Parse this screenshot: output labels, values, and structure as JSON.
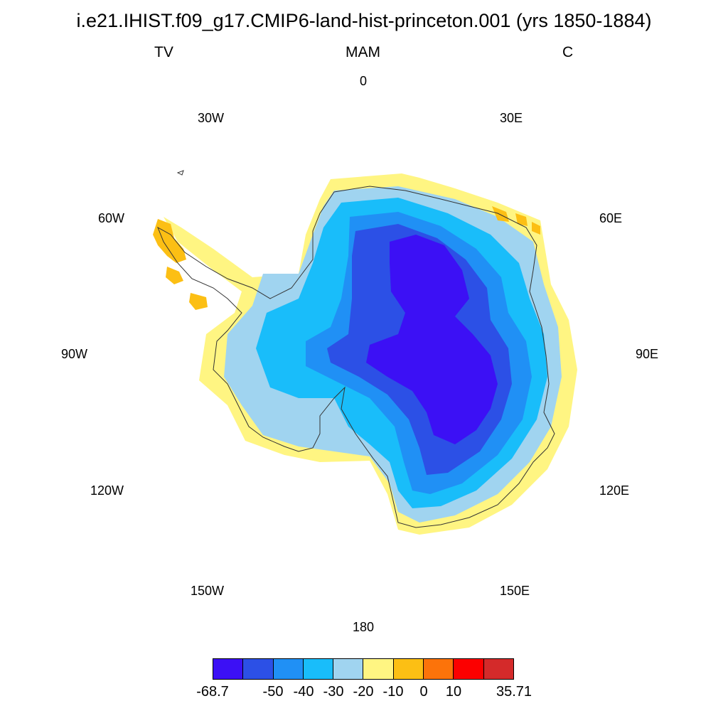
{
  "title": "i.e21.IHIST.f09_g17.CMIP6-land-hist-princeton.001 (yrs 1850-1884)",
  "left_label": "TV",
  "center_label": "MAM",
  "right_label": "C",
  "longitude_labels": {
    "lon_0": "0",
    "lon_30e": "30E",
    "lon_60e": "60E",
    "lon_90e": "90E",
    "lon_120e": "120E",
    "lon_150e": "150E",
    "lon_180": "180",
    "lon_150w": "150W",
    "lon_120w": "120W",
    "lon_90w": "90W",
    "lon_60w": "60W",
    "lon_30w": "30W"
  },
  "colorbar": {
    "colors": [
      "#3c10f5",
      "#2c50e6",
      "#2090f5",
      "#19bdfa",
      "#a0d4f0",
      "#fff582",
      "#fcbf14",
      "#fc730a",
      "#fc0000",
      "#d42a2a"
    ],
    "labels": {
      "l0": "-68.7",
      "l1": "-50",
      "l2": "-40",
      "l3": "-30",
      "l4": "-20",
      "l5": "-10",
      "l6": "0",
      "l7": "10",
      "l8": "35.71"
    }
  }
}
